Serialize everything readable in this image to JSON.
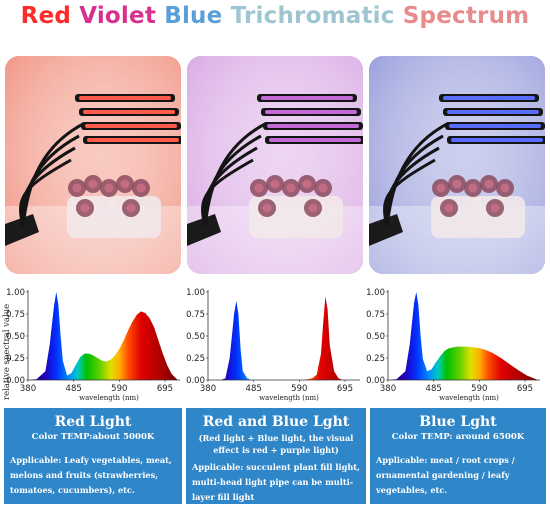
{
  "title": {
    "parts": [
      {
        "text": "Red ",
        "color": "#ff2a2a"
      },
      {
        "text": "Violet ",
        "color": "#d9308f"
      },
      {
        "text": "Blue ",
        "color": "#5b9fd8"
      },
      {
        "text": "Trichromatic ",
        "color": "#9ec6d0"
      },
      {
        "text": "Spectrum",
        "color": "#e88b8d"
      }
    ]
  },
  "photos": [
    {
      "tint": "#f08a78",
      "bar_color": "#ff5a4a",
      "description": "red"
    },
    {
      "tint": "#d6a2e2",
      "bar_color": "#c46ad8",
      "description": "red-blue"
    },
    {
      "tint": "#8f95d8",
      "bar_color": "#5a6cff",
      "description": "blue"
    }
  ],
  "y_axis_label": "relative spectral value",
  "chart_data": [
    {
      "type": "area",
      "xlabel": "wavelength (nm)",
      "x_ticks": [
        "380",
        "485",
        "590",
        "695"
      ],
      "y_ticks": [
        "1.00",
        "0.75",
        "0.50",
        "0.25",
        "0.00"
      ],
      "xlim": [
        380,
        725
      ],
      "ylim": [
        0,
        1
      ],
      "x": [
        380,
        400,
        420,
        430,
        440,
        445,
        450,
        455,
        460,
        470,
        480,
        490,
        500,
        510,
        520,
        530,
        540,
        550,
        560,
        570,
        580,
        590,
        600,
        610,
        620,
        630,
        640,
        650,
        660,
        670,
        680,
        690,
        700,
        710,
        720,
        725
      ],
      "y": [
        0,
        0.01,
        0.1,
        0.4,
        0.85,
        1.0,
        0.85,
        0.5,
        0.22,
        0.05,
        0.08,
        0.17,
        0.26,
        0.3,
        0.3,
        0.28,
        0.25,
        0.22,
        0.21,
        0.23,
        0.28,
        0.35,
        0.45,
        0.56,
        0.66,
        0.74,
        0.78,
        0.76,
        0.7,
        0.6,
        0.45,
        0.3,
        0.17,
        0.07,
        0.02,
        0
      ]
    },
    {
      "type": "area",
      "xlabel": "wavelength (nm)",
      "x_ticks": [
        "380",
        "485",
        "590",
        "695"
      ],
      "y_ticks": [
        "1.00",
        "0.75",
        "0.50",
        "0.25",
        "0.00"
      ],
      "xlim": [
        380,
        725
      ],
      "ylim": [
        0,
        1
      ],
      "x": [
        380,
        410,
        420,
        430,
        440,
        445,
        450,
        455,
        460,
        470,
        480,
        500,
        520,
        560,
        600,
        620,
        630,
        640,
        645,
        650,
        655,
        660,
        670,
        680,
        690,
        700,
        725
      ],
      "y": [
        0,
        0,
        0.02,
        0.25,
        0.75,
        0.9,
        0.75,
        0.35,
        0.1,
        0.02,
        0,
        0,
        0,
        0,
        0,
        0.02,
        0.06,
        0.3,
        0.65,
        0.95,
        0.8,
        0.4,
        0.1,
        0.02,
        0,
        0,
        0
      ]
    },
    {
      "type": "area",
      "xlabel": "wavelength (nm)",
      "x_ticks": [
        "380",
        "485",
        "590",
        "695"
      ],
      "y_ticks": [
        "1.00",
        "0.75",
        "0.50",
        "0.25",
        "0.00"
      ],
      "xlim": [
        380,
        725
      ],
      "ylim": [
        0,
        1
      ],
      "x": [
        380,
        400,
        420,
        430,
        440,
        445,
        450,
        455,
        460,
        470,
        480,
        490,
        500,
        510,
        520,
        530,
        540,
        560,
        580,
        590,
        600,
        620,
        640,
        660,
        680,
        700,
        720,
        725
      ],
      "y": [
        0,
        0.01,
        0.1,
        0.4,
        0.88,
        1.0,
        0.85,
        0.5,
        0.24,
        0.1,
        0.12,
        0.2,
        0.27,
        0.33,
        0.36,
        0.37,
        0.38,
        0.38,
        0.37,
        0.36,
        0.35,
        0.31,
        0.25,
        0.18,
        0.11,
        0.05,
        0.01,
        0
      ]
    }
  ],
  "panels": [
    {
      "title": "Red Light",
      "temp": "Color TEMP:about 5000K",
      "note": "",
      "applicable": "Applicable: Leafy vegetables, meat, melons and fruits (strawberries, tomatoes, cucumbers), etc."
    },
    {
      "title": "Red and Blue Lght",
      "temp": "",
      "note": "(Red light + Blue light, the visual effect is red + purple light)",
      "applicable": "Applicable: succulent plant fill light, multi-head light pipe can be multi-layer fill light"
    },
    {
      "title": "Blue Lght",
      "temp": "Color TEMP: around 6500K",
      "note": "",
      "applicable": "Applicable: meat / root crops / ornamental gardening / leafy vegetables, etc."
    }
  ]
}
